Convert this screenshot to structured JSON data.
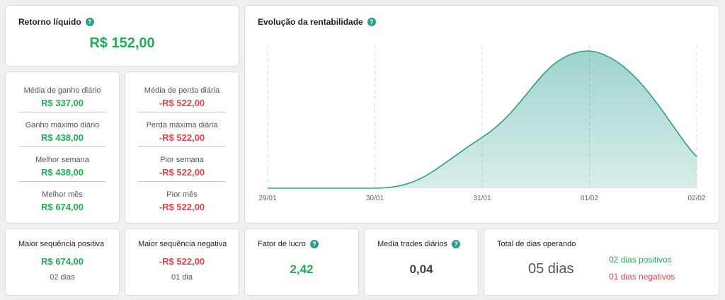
{
  "retorno": {
    "title": "Retorno líquido",
    "value": "R$ 152,00"
  },
  "ganhos": [
    {
      "label": "Média de ganho diário",
      "value": "R$ 337,00"
    },
    {
      "label": "Ganho máximo diário",
      "value": "R$ 438,00"
    },
    {
      "label": "Melhor semana",
      "value": "R$ 438,00"
    },
    {
      "label": "Melhor mês",
      "value": "R$ 674,00"
    }
  ],
  "perdas": [
    {
      "label": "Média de perda diária",
      "value": "-R$ 522,00"
    },
    {
      "label": "Perda máxima diária",
      "value": "-R$ 522,00"
    },
    {
      "label": "Pior semana",
      "value": "-R$ 522,00"
    },
    {
      "label": "Pior mês",
      "value": "-R$ 522,00"
    }
  ],
  "chart": {
    "title": "Evolução da rentabilidade"
  },
  "chart_data": {
    "type": "area",
    "x": [
      "29/01",
      "30/01",
      "31/01",
      "01/02",
      "02/02"
    ],
    "values": [
      0,
      0,
      0.37,
      1.0,
      0.23
    ],
    "color": "#2a9d8f",
    "grid": "vertical-dashed"
  },
  "seq_pos": {
    "title": "Maior sequência positiva",
    "value": "R$ 674,00",
    "sub": "02 dias"
  },
  "seq_neg": {
    "title": "Maior sequência negativa",
    "value": "-R$ 522,00",
    "sub": "01 dia"
  },
  "fator": {
    "title": "Fator de lucro",
    "value": "2,42"
  },
  "media_trades": {
    "title": "Media trades diários",
    "value": "0,04"
  },
  "dias": {
    "title": "Total de dias operando",
    "value": "05 dias",
    "positivos": "02 dias positivos",
    "negativos": "01 dias negativos"
  },
  "help_glyph": "?"
}
